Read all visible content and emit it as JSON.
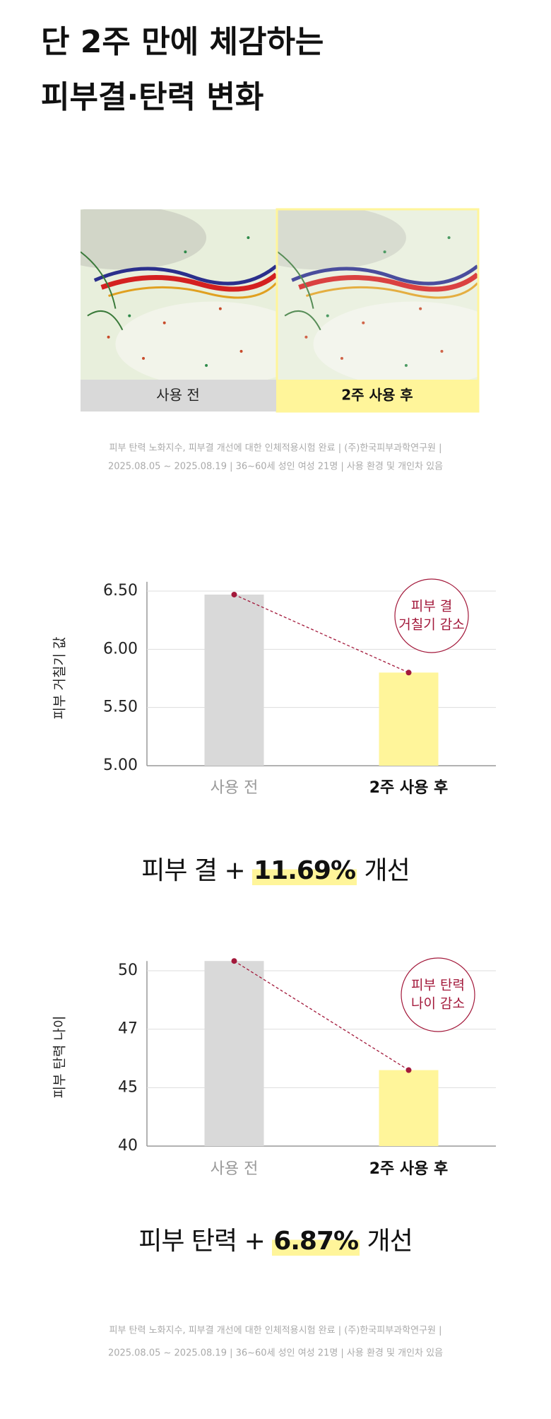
{
  "header": {
    "title": [
      "단 2주 만에 체감하는",
      "피부결·탄력 변화"
    ]
  },
  "image_labels": [
    "사용 전",
    "2주 사용 후"
  ],
  "notes": [
    "피부 탄력 노화지수, 피부결 개선에 대한 인체적용시험 완료 | (주)한국피부과학연구원 |",
    "2025.08.05 ~ 2025.08.19 | 36~60세 성인 여성 21명 | 사용 환경 및 개인차 있음"
  ],
  "chart_data": [
    {
      "type": "bar",
      "y_label": "피부 거칠기 값",
      "categories": [
        "사용 전",
        "2주 사용 후"
      ],
      "values": [
        6.47,
        5.8
      ],
      "colors": [
        "#d9d9d9",
        "#fff59a"
      ],
      "marker_color": "#a3193b",
      "ylim": [
        5,
        6.58
      ],
      "yticks": [
        {
          "value": 5,
          "label": "5.00"
        },
        {
          "value": 5.5,
          "label": "5.50"
        },
        {
          "value": 6,
          "label": "6.00"
        },
        {
          "value": 6.5,
          "label": "6.50"
        }
      ],
      "grid": true,
      "annotation": [
        "피부 결",
        "거칠기 감소"
      ]
    },
    {
      "type": "bar",
      "y_label": "피부 탄력 나이",
      "categories": [
        "사용 전",
        "2주 사용 후"
      ],
      "values": [
        50.5,
        45.6
      ],
      "colors": [
        "#d9d9d9",
        "#fff59a"
      ],
      "marker_color": "#a3193b",
      "ylim": [
        40,
        50.5
      ],
      "yticks": [
        40,
        45,
        47,
        50
      ],
      "grid": true,
      "annotation": [
        "피부 탄력",
        "나이 감소"
      ]
    }
  ],
  "results": [
    {
      "prefix": "피부 결 +",
      "highlight": "11.69%",
      "suffix": "개선"
    },
    {
      "prefix": "피부 탄력 +",
      "highlight": "6.87%",
      "suffix": "개선"
    }
  ],
  "footer": {
    "notes": [
      "피부 탄력 노화지수, 피부결 개선에 대한 인체적용시험 완료 | (주)한국피부과학연구원 |",
      "2025.08.05 ~ 2025.08.19 | 36~60세 성인 여성 21명 | 사용 환경 및 개인차 있음"
    ]
  }
}
